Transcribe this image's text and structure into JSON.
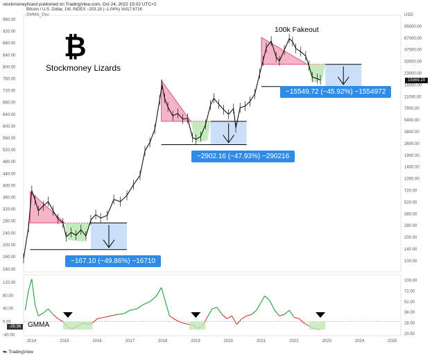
{
  "header": {
    "publisher": "stockmoneylizard published on TradingView.com, Oct 24, 2022 15:02 UTC+2",
    "symbol_line": "Bitcoin / U.S. Dollar, 1W, INDEX  −203.18 (−1.04%)  Vol17.671K",
    "indicator": "GMMA_Osc"
  },
  "branding": {
    "logo_glyph": "₿",
    "name": "Stockmoney Lizards",
    "footer": "TradingView"
  },
  "annotations": {
    "fakeout": "100k Fakeout",
    "callout_2022": "−15549.72 (−45.92%) −1554972",
    "callout_2019": "−2902.16 (−47.93%) −290216",
    "callout_2015": "−167.10 (−49.86%) −16710",
    "gmma_label": "GMMA",
    "osc_value": "-28.36",
    "last_price": "19369.20"
  },
  "chart_data": {
    "type": "line",
    "title": "Bitcoin / U.S. Dollar, 1W",
    "xlabel": "",
    "ylabel": "USD",
    "x_ticks": [
      "2014",
      "2015",
      "2016",
      "2017",
      "2018",
      "2019",
      "2020",
      "2021",
      "2022",
      "2023",
      "2024",
      "2025"
    ],
    "y_ticks_left_price": [
      "960.00",
      "920.00",
      "880.00",
      "840.00",
      "800.00",
      "760.00",
      "720.00",
      "680.00",
      "640.00",
      "600.00",
      "560.00",
      "520.00",
      "480.00",
      "440.00",
      "400.00",
      "360.00",
      "320.00",
      "280.00",
      "240.00",
      "200.00",
      "160.00"
    ],
    "y_ticks_right_price": [
      "USD",
      "95000.00",
      "67000.00",
      "47000.00",
      "33000.00",
      "23000.00",
      "16000.00",
      "11000.00",
      "7800.00",
      "5400.00",
      "3800.00",
      "2600.00",
      "1900.00",
      "1400.00",
      "1000.00",
      "720.00",
      "520.00",
      "380.00",
      "280.00",
      "200.00",
      "140.00",
      "100.00"
    ],
    "y_ticks_left_osc": [
      "160.00",
      "120.00",
      "80.00",
      "40.00",
      "0.00",
      "-40.00"
    ],
    "y_ticks_right_osc": [
      "100.00",
      "72.00",
      "52.00",
      "38.00",
      "28.00",
      "20.50"
    ],
    "price_series": {
      "name": "BTCUSD weekly close",
      "x": [
        2013.75,
        2013.9,
        2014.0,
        2014.1,
        2014.2,
        2014.35,
        2014.5,
        2014.65,
        2014.8,
        2014.95,
        2015.05,
        2015.2,
        2015.35,
        2015.5,
        2015.65,
        2015.8,
        2015.95,
        2016.1,
        2016.3,
        2016.5,
        2016.7,
        2016.9,
        2017.1,
        2017.3,
        2017.45,
        2017.6,
        2017.75,
        2017.9,
        2017.97,
        2018.05,
        2018.15,
        2018.3,
        2018.45,
        2018.6,
        2018.75,
        2018.9,
        2019.0,
        2019.15,
        2019.3,
        2019.45,
        2019.55,
        2019.7,
        2019.85,
        2020.0,
        2020.15,
        2020.22,
        2020.35,
        2020.5,
        2020.65,
        2020.8,
        2020.95,
        2021.05,
        2021.15,
        2021.3,
        2021.45,
        2021.55,
        2021.7,
        2021.85,
        2021.95,
        2022.05,
        2022.2,
        2022.35,
        2022.45,
        2022.55,
        2022.7,
        2022.8
      ],
      "values": [
        125,
        300,
        850,
        650,
        480,
        550,
        620,
        480,
        380,
        340,
        230,
        260,
        240,
        280,
        235,
        370,
        430,
        390,
        420,
        660,
        620,
        740,
        1000,
        1300,
        2600,
        3300,
        4800,
        11000,
        17000,
        11500,
        9000,
        7000,
        7500,
        6400,
        6500,
        3800,
        3600,
        3900,
        5500,
        9500,
        11500,
        9700,
        8300,
        7300,
        8600,
        5000,
        8800,
        9200,
        10500,
        13000,
        23000,
        33000,
        48000,
        58000,
        37000,
        33000,
        45000,
        62000,
        57000,
        47000,
        43000,
        38000,
        29000,
        21000,
        20000,
        19369
      ]
    },
    "zones": [
      {
        "name": "2014 distribution",
        "kind": "triangle",
        "color": "#f0a0b8"
      },
      {
        "name": "2015 accumulation",
        "kind": "ellipse",
        "color": "#b8e6b0"
      },
      {
        "name": "2018 distribution",
        "kind": "triangle",
        "color": "#f0a0b8"
      },
      {
        "name": "2019 accumulation",
        "kind": "ellipse",
        "color": "#b8e6b0"
      },
      {
        "name": "2022 distribution",
        "kind": "triangle",
        "color": "#f0a0b8"
      },
      {
        "name": "2022 accumulation",
        "kind": "ellipse",
        "color": "#b8e6b0"
      }
    ],
    "measured_drops": [
      {
        "label": "−167.10 (−49.86%) −16710",
        "color": "#c8dcf8"
      },
      {
        "label": "−2902.16 (−47.93%) −290216",
        "color": "#c8dcf8"
      },
      {
        "label": "−15549.72 (−45.92%) −1554972",
        "color": "#c8dcf8"
      }
    ],
    "oscillator_series": {
      "name": "GMMA_Osc",
      "x": [
        2013.8,
        2013.9,
        2014.0,
        2014.1,
        2014.2,
        2014.35,
        2014.5,
        2014.65,
        2014.8,
        2014.95,
        2015.1,
        2015.25,
        2015.4,
        2015.55,
        2015.7,
        2015.85,
        2016.0,
        2016.2,
        2016.4,
        2016.6,
        2016.8,
        2017.0,
        2017.2,
        2017.4,
        2017.6,
        2017.8,
        2017.95,
        2018.05,
        2018.2,
        2018.4,
        2018.6,
        2018.8,
        2018.95,
        2019.05,
        2019.2,
        2019.35,
        2019.5,
        2019.65,
        2019.8,
        2019.95,
        2020.1,
        2020.25,
        2020.4,
        2020.55,
        2020.7,
        2020.85,
        2021.0,
        2021.1,
        2021.25,
        2021.4,
        2021.55,
        2021.7,
        2021.85,
        2022.0,
        2022.15,
        2022.3,
        2022.45,
        2022.6,
        2022.8
      ],
      "values": [
        40,
        110,
        150,
        60,
        20,
        30,
        45,
        25,
        10,
        0,
        -20,
        -25,
        -15,
        -5,
        -10,
        -5,
        10,
        15,
        20,
        25,
        28,
        40,
        45,
        60,
        70,
        90,
        120,
        80,
        20,
        5,
        -5,
        -10,
        -15,
        -25,
        -15,
        15,
        45,
        50,
        25,
        10,
        20,
        -10,
        10,
        20,
        25,
        40,
        70,
        90,
        75,
        40,
        20,
        25,
        40,
        15,
        10,
        -5,
        -15,
        -25,
        -28
      ]
    },
    "signal_markers": [
      2015.1,
      2019.0,
      2022.8
    ]
  }
}
